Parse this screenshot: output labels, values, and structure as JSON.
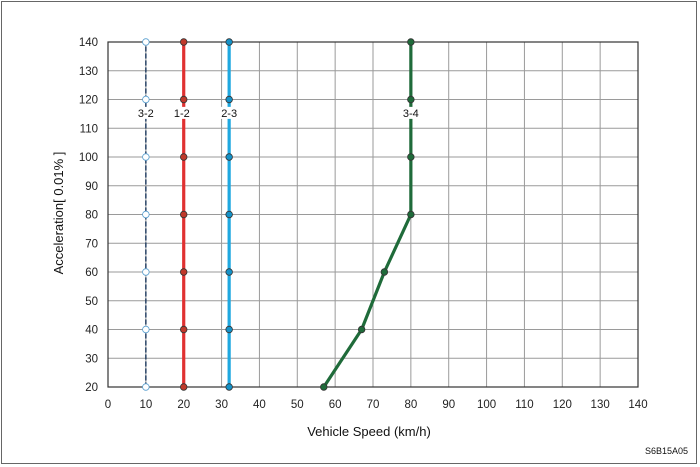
{
  "chart_data": {
    "type": "line",
    "xlabel": "Vehicle Speed (km/h)",
    "ylabel": "Acceleration[ 0.01% ]",
    "xlim": [
      0,
      140
    ],
    "ylim": [
      20,
      140
    ],
    "xticks": [
      0,
      10,
      20,
      30,
      40,
      50,
      60,
      70,
      80,
      90,
      100,
      110,
      120,
      130,
      140
    ],
    "yticks": [
      20,
      30,
      40,
      50,
      60,
      70,
      80,
      90,
      100,
      110,
      120,
      130,
      140
    ],
    "grid": true,
    "figure_code": "S6B15A05",
    "series": [
      {
        "name": "3-2",
        "color": "#1e3a5f",
        "line_style": "dashed",
        "marker_fill": "#ffffff",
        "label_at": [
          10,
          115
        ],
        "points": [
          [
            10,
            20
          ],
          [
            10,
            40
          ],
          [
            10,
            60
          ],
          [
            10,
            80
          ],
          [
            10,
            100
          ],
          [
            10,
            120
          ],
          [
            10,
            140
          ]
        ]
      },
      {
        "name": "1-2",
        "color": "#e03131",
        "line_style": "solid",
        "marker_fill": "#c0392b",
        "label_at": [
          19.5,
          115
        ],
        "points": [
          [
            20,
            20
          ],
          [
            20,
            40
          ],
          [
            20,
            60
          ],
          [
            20,
            80
          ],
          [
            20,
            100
          ],
          [
            20,
            120
          ],
          [
            20,
            140
          ]
        ]
      },
      {
        "name": "2-3",
        "color": "#1fa8e0",
        "line_style": "solid",
        "marker_fill": "#1592c8",
        "label_at": [
          32,
          115
        ],
        "points": [
          [
            32,
            20
          ],
          [
            32,
            40
          ],
          [
            32,
            60
          ],
          [
            32,
            80
          ],
          [
            32,
            100
          ],
          [
            32,
            120
          ],
          [
            32,
            140
          ]
        ]
      },
      {
        "name": "3-4",
        "color": "#1f6b3a",
        "line_style": "solid",
        "marker_fill": "#1f6b3a",
        "label_at": [
          80,
          115
        ],
        "points": [
          [
            57,
            20
          ],
          [
            67,
            40
          ],
          [
            73,
            60
          ],
          [
            80,
            80
          ],
          [
            80,
            100
          ],
          [
            80,
            120
          ],
          [
            80,
            140
          ]
        ]
      }
    ]
  }
}
